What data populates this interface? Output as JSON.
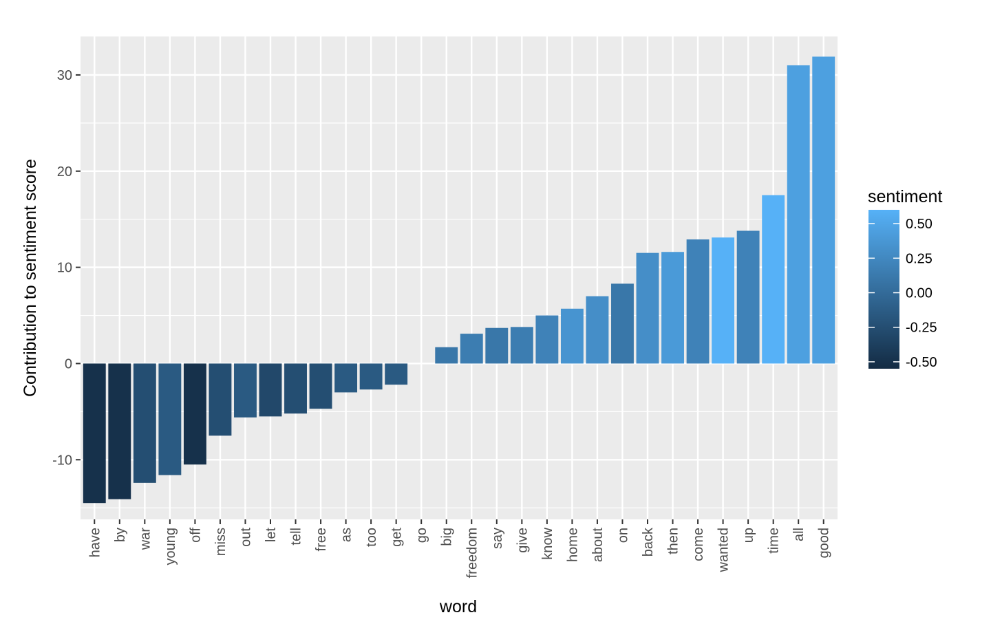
{
  "chart_data": {
    "type": "bar",
    "xlabel": "word",
    "ylabel": "Contribution to sentiment score",
    "ylim": [
      -16.2,
      34
    ],
    "yticks": [
      -10,
      0,
      10,
      20,
      30
    ],
    "grid": true,
    "categories": [
      "have",
      "by",
      "war",
      "young",
      "off",
      "miss",
      "out",
      "let",
      "tell",
      "free",
      "as",
      "too",
      "get",
      "go",
      "big",
      "freedom",
      "say",
      "give",
      "know",
      "home",
      "about",
      "on",
      "back",
      "then",
      "come",
      "wanted",
      "up",
      "time",
      "all",
      "good"
    ],
    "values": [
      -14.5,
      -14.1,
      -12.4,
      -11.6,
      -10.5,
      -7.5,
      -5.6,
      -5.5,
      -5.2,
      -4.7,
      -3.0,
      -2.7,
      -2.2,
      0,
      1.7,
      3.1,
      3.7,
      3.8,
      5.0,
      5.7,
      7.0,
      8.3,
      11.5,
      11.6,
      12.9,
      13.1,
      13.8,
      17.5,
      31.0,
      31.9
    ],
    "sentiment": [
      -0.5,
      -0.5,
      -0.25,
      -0.15,
      -0.5,
      -0.25,
      -0.15,
      -0.3,
      -0.25,
      -0.25,
      -0.15,
      -0.15,
      -0.15,
      0,
      0.1,
      0.15,
      0.1,
      0.15,
      0.2,
      0.35,
      0.3,
      0.1,
      0.3,
      0.4,
      0.2,
      0.6,
      0.2,
      0.6,
      0.45,
      0.45
    ],
    "legend": {
      "title": "sentiment",
      "position": "right",
      "labels": [
        "0.50",
        "0.25",
        "0.00",
        "-0.25",
        "-0.50"
      ],
      "breaks": [
        0.5,
        0.25,
        0,
        -0.25,
        -0.5
      ],
      "range": [
        -0.55,
        0.6
      ],
      "colors": {
        "low": "#132B43",
        "high": "#56B1F7"
      }
    }
  }
}
